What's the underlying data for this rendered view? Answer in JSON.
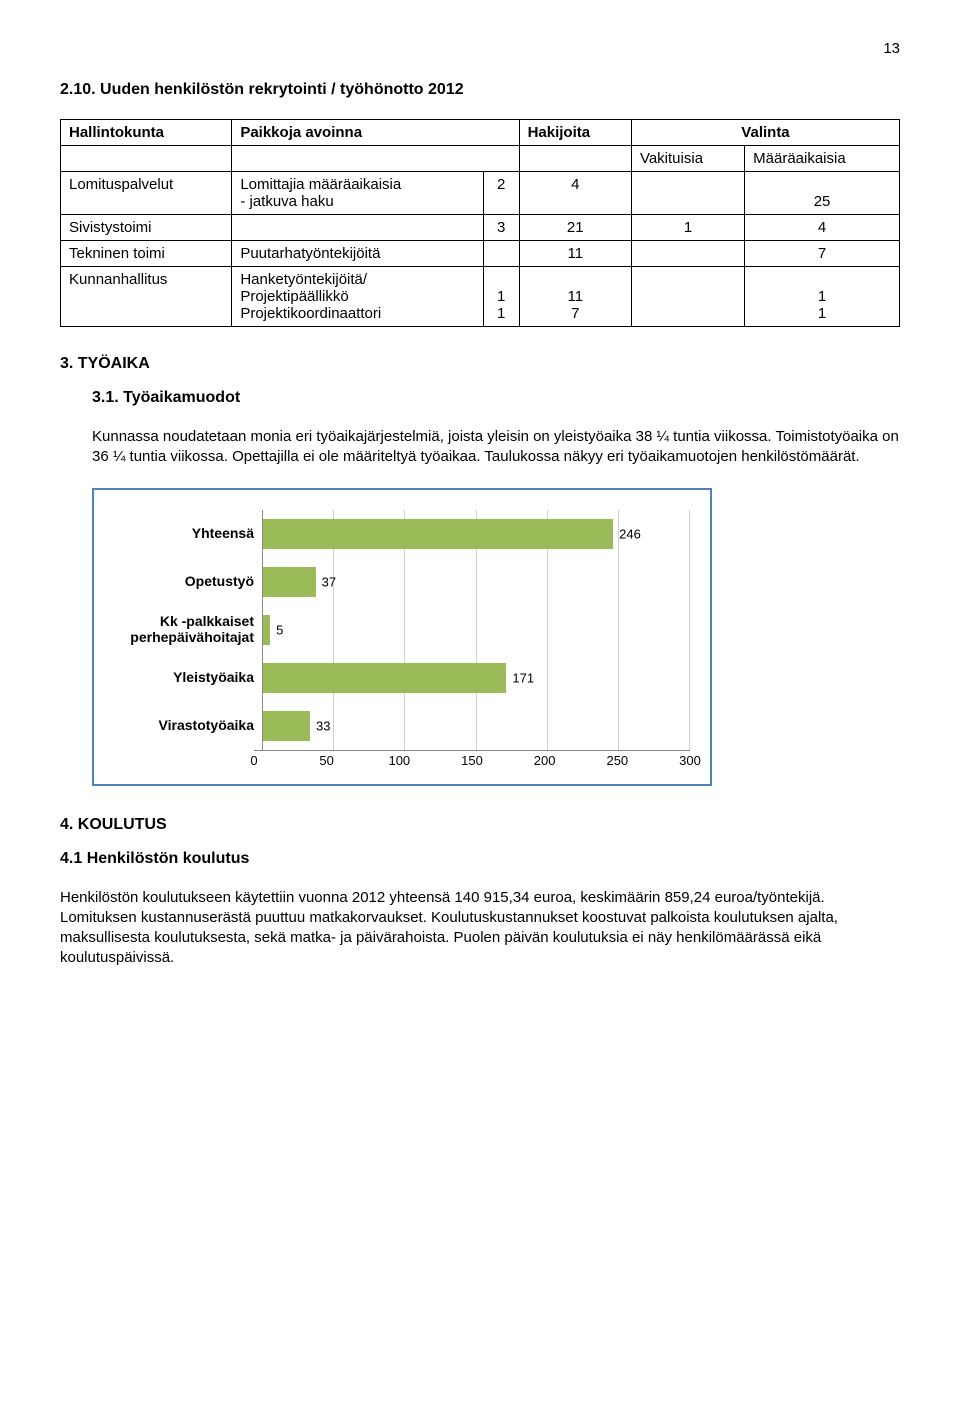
{
  "page_number": "13",
  "section_2_10": {
    "heading": "2.10. Uuden henkilöstön rekrytointi / työhönotto 2012",
    "table": {
      "headers": [
        "Hallintokunta",
        "Paikkoja avoinna",
        "Hakijoita",
        "Valinta"
      ],
      "sub_headers_row": [
        "",
        "",
        "",
        "Vakituisia",
        "Määräaikaisia"
      ],
      "rows": [
        {
          "label": "Lomituspalvelut",
          "sub": [
            "Lomittajia määräaikaisia",
            "- jatkuva haku"
          ],
          "c1": "2",
          "c2": "4",
          "c3": "",
          "c4": "25"
        },
        {
          "label": "Sivistystoimi",
          "sub": [],
          "c1": "3",
          "c2": "21",
          "c3": "1",
          "c4": "4"
        },
        {
          "label": "Tekninen toimi",
          "sub": [
            "Puutarhatyöntekijöitä"
          ],
          "c1": "",
          "c2": "11",
          "c3": "",
          "c4": "7"
        },
        {
          "label": "Kunnanhallitus",
          "sub": [
            "Hanketyöntekijöitä/",
            "Projektipäällikkö",
            "Projektikoordinaattori"
          ],
          "c1a": "1",
          "c1b": "1",
          "c2a": "11",
          "c2b": "7",
          "c3a": "",
          "c3b": "",
          "c4a": "1",
          "c4b": "1"
        }
      ]
    }
  },
  "section_3": {
    "heading": "3. TYÖAIKA",
    "sub_heading": "3.1. Työaikamuodot",
    "paragraph": "Kunnassa noudatetaan monia eri työaikajärjestelmiä, joista yleisin on yleistyöaika 38 ¼ tuntia viikossa. Toimistotyöaika on 36 ¼ tuntia viikossa. Opettajilla ei ole määriteltyä työaikaa. Taulukossa näkyy eri työaikamuotojen henkilöstömäärät."
  },
  "chart": {
    "type": "bar-horizontal",
    "x_max": 300,
    "tick_step": 50,
    "ticks": [
      "0",
      "50",
      "100",
      "150",
      "200",
      "250",
      "300"
    ],
    "bar_color": "#9bbb59",
    "background_color": "#ffffff",
    "grid_color": "#d0d0d0",
    "axis_color": "#888888",
    "font_size_labels": 14,
    "font_size_values": 13,
    "categories": [
      {
        "label": "Yhteensä",
        "value": 246
      },
      {
        "label": "Opetustyö",
        "value": 37
      },
      {
        "label": "Kk -palkkaiset perhepäivähoitajat",
        "value": 5
      },
      {
        "label": "Yleistyöaika",
        "value": 171
      },
      {
        "label": "Virastotyöaika",
        "value": 33
      }
    ]
  },
  "section_4": {
    "heading": "4. KOULUTUS",
    "sub_heading": "4.1 Henkilöstön koulutus",
    "paragraph": "Henkilöstön koulutukseen käytettiin vuonna 2012 yhteensä 140 915,34 euroa, keskimäärin 859,24 euroa/työntekijä. Lomituksen kustannuserästä puuttuu matkakorvaukset. Koulutuskustannukset koostuvat palkoista koulutuksen ajalta, maksullisesta koulutuksesta, sekä matka- ja päivärahoista. Puolen päivän koulutuksia ei näy henkilömäärässä eikä koulutuspäivissä."
  }
}
